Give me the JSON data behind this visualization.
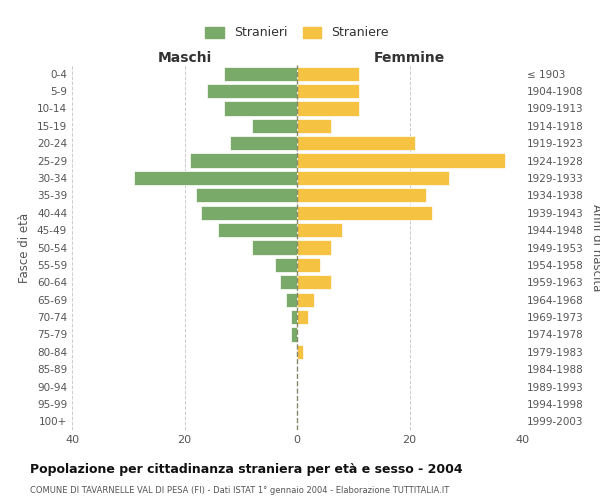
{
  "age_groups": [
    "0-4",
    "5-9",
    "10-14",
    "15-19",
    "20-24",
    "25-29",
    "30-34",
    "35-39",
    "40-44",
    "45-49",
    "50-54",
    "55-59",
    "60-64",
    "65-69",
    "70-74",
    "75-79",
    "80-84",
    "85-89",
    "90-94",
    "95-99",
    "100+"
  ],
  "birth_years": [
    "1999-2003",
    "1994-1998",
    "1989-1993",
    "1984-1988",
    "1979-1983",
    "1974-1978",
    "1969-1973",
    "1964-1968",
    "1959-1963",
    "1954-1958",
    "1949-1953",
    "1944-1948",
    "1939-1943",
    "1934-1938",
    "1929-1933",
    "1924-1928",
    "1919-1923",
    "1914-1918",
    "1909-1913",
    "1904-1908",
    "≤ 1903"
  ],
  "maschi": [
    13,
    16,
    13,
    8,
    12,
    19,
    29,
    18,
    17,
    14,
    8,
    4,
    3,
    2,
    1,
    1,
    0,
    0,
    0,
    0,
    0
  ],
  "femmine": [
    11,
    11,
    11,
    6,
    21,
    37,
    27,
    23,
    24,
    8,
    6,
    4,
    6,
    3,
    2,
    0,
    1,
    0,
    0,
    0,
    0
  ],
  "male_color": "#7aaa6a",
  "female_color": "#f5c242",
  "background_color": "#ffffff",
  "grid_color": "#cccccc",
  "title": "Popolazione per cittadinanza straniera per età e sesso - 2004",
  "subtitle": "COMUNE DI TAVARNELLE VAL DI PESA (FI) - Dati ISTAT 1° gennaio 2004 - Elaborazione TUTTITALIA.IT",
  "xlabel_left": "Maschi",
  "xlabel_right": "Femmine",
  "ylabel_left": "Fasce di età",
  "ylabel_right": "Anni di nascita",
  "legend_male": "Stranieri",
  "legend_female": "Straniere",
  "xlim": 40,
  "xticks": [
    -40,
    -20,
    0,
    20,
    40
  ],
  "xticklabels": [
    "40",
    "20",
    "0",
    "20",
    "40"
  ]
}
